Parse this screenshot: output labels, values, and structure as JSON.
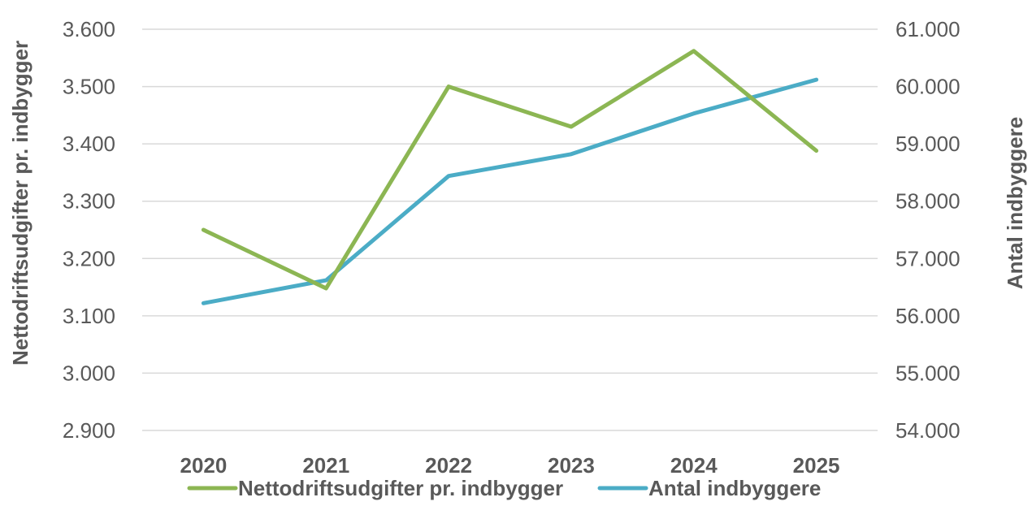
{
  "chart_data": {
    "type": "line",
    "title": "",
    "categories": [
      "2020",
      "2021",
      "2022",
      "2023",
      "2024",
      "2025"
    ],
    "series": [
      {
        "name": "Nettodriftsudgifter pr. indbygger",
        "axis": "left",
        "color": "#8CB653",
        "values": [
          3250,
          3148,
          3500,
          3430,
          3562,
          3388
        ]
      },
      {
        "name": "Antal indbyggere",
        "axis": "right",
        "color": "#4BACC6",
        "values": [
          56220,
          56620,
          58440,
          58820,
          59530,
          60120
        ]
      }
    ],
    "y_left": {
      "label": "Nettodriftsudgifter pr. indbygger",
      "lim": [
        2900,
        3600
      ],
      "ticks": [
        "2.900",
        "3.000",
        "3.100",
        "3.200",
        "3.300",
        "3.400",
        "3.500",
        "3.600"
      ]
    },
    "y_right": {
      "label": "Antal indbyggere",
      "lim": [
        54000,
        61000
      ],
      "ticks": [
        "54.000",
        "55.000",
        "56.000",
        "57.000",
        "58.000",
        "59.000",
        "60.000",
        "61.000"
      ]
    },
    "grid": true,
    "legend_position": "bottom"
  }
}
